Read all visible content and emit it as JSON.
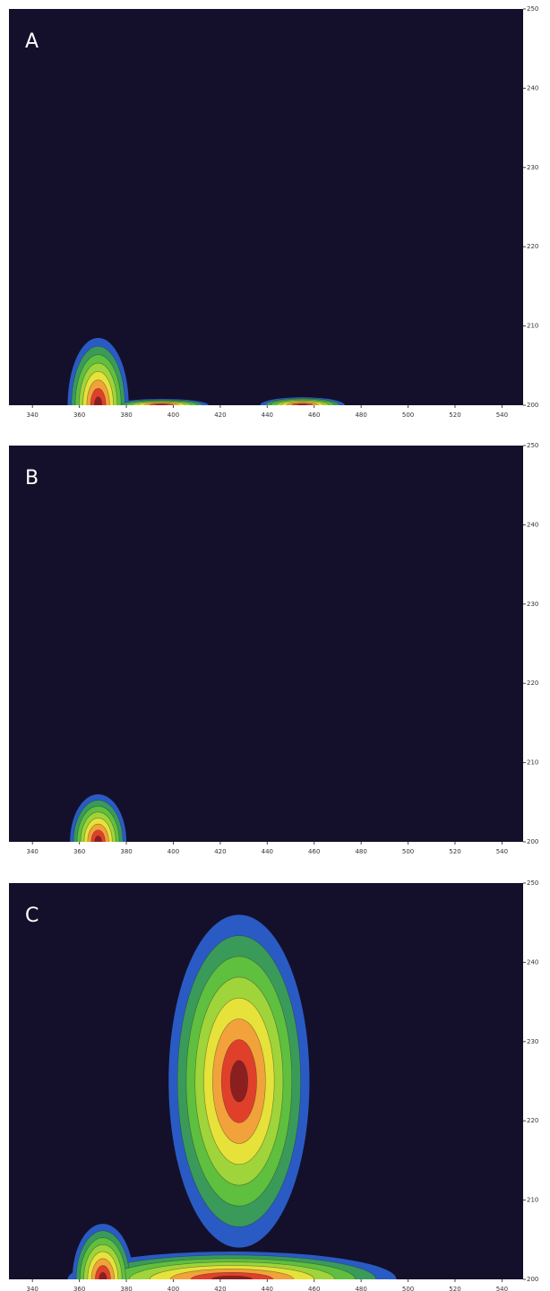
{
  "chart_data": [
    {
      "type": "contour",
      "label": "A",
      "xlim": [
        330,
        549
      ],
      "ylim": [
        200,
        250
      ],
      "xticks": [
        340,
        360,
        380,
        400,
        420,
        440,
        460,
        480,
        500,
        520,
        540
      ],
      "yticks": [
        200,
        210,
        220,
        230,
        240,
        250
      ],
      "background": "#14102b",
      "colors": [
        "#2a5bc4",
        "#3a9a5a",
        "#5fbf3e",
        "#9fd43a",
        "#e6e23a",
        "#f2a23a",
        "#e0402a",
        "#8b1f1f"
      ],
      "peaks": [
        {
          "x": 368,
          "y": 200,
          "dx": 13,
          "dy": 8.5
        },
        {
          "x": 395,
          "y": 200,
          "dx": 20,
          "dy": 0.8
        },
        {
          "x": 455,
          "y": 200,
          "dx": 18,
          "dy": 1.0
        }
      ]
    },
    {
      "type": "contour",
      "label": "B",
      "xlim": [
        330,
        549
      ],
      "ylim": [
        200,
        250
      ],
      "xticks": [
        340,
        360,
        380,
        400,
        420,
        440,
        460,
        480,
        500,
        520,
        540
      ],
      "yticks": [
        200,
        210,
        220,
        230,
        240,
        250
      ],
      "background": "#14102b",
      "colors": [
        "#2a5bc4",
        "#3a9a5a",
        "#5fbf3e",
        "#9fd43a",
        "#e6e23a",
        "#f2a23a",
        "#e0402a",
        "#8b1f1f"
      ],
      "peaks": [
        {
          "x": 368,
          "y": 200,
          "dx": 12,
          "dy": 6
        }
      ]
    },
    {
      "type": "contour",
      "label": "C",
      "xlim": [
        330,
        549
      ],
      "ylim": [
        200,
        250
      ],
      "xticks": [
        340,
        360,
        380,
        400,
        420,
        440,
        460,
        480,
        500,
        520,
        540
      ],
      "yticks": [
        200,
        210,
        220,
        230,
        240,
        250
      ],
      "background": "#14102b",
      "colors": [
        "#2a5bc4",
        "#3a9a5a",
        "#5fbf3e",
        "#9fd43a",
        "#e6e23a",
        "#f2a23a",
        "#e0402a",
        "#8b1f1f"
      ],
      "peaks": [
        {
          "x": 425,
          "y": 200,
          "dx": 70,
          "dy": 3.5
        },
        {
          "x": 370,
          "y": 200,
          "dx": 13,
          "dy": 7
        },
        {
          "x": 428,
          "y": 225,
          "dx": 30,
          "dy": 21
        }
      ]
    }
  ]
}
